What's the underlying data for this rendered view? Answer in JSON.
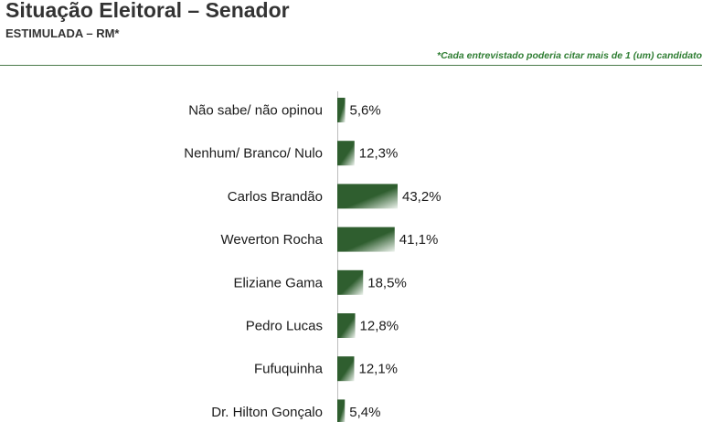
{
  "header": {
    "title": "Situação Eleitoral – Senador",
    "subtitle": "ESTIMULADA – RM*",
    "note": "*Cada entrevistado poderia citar mais de 1 (um) candidato"
  },
  "colors": {
    "bar_dark": "#2f5e2f",
    "bar_light": "#eef4ee",
    "accent": "#2e7d32"
  },
  "chart_data": {
    "type": "bar",
    "orientation": "horizontal",
    "categories": [
      "Não sabe/ não opinou",
      "Nenhum/ Branco/ Nulo",
      "Carlos Brandão",
      "Weverton Rocha",
      "Eliziane Gama",
      "Pedro Lucas",
      "Fufuquinha",
      "Dr. Hilton Gonçalo"
    ],
    "values": [
      5.6,
      12.3,
      43.2,
      41.1,
      18.5,
      12.8,
      12.1,
      5.4
    ],
    "value_labels": [
      "5,6%",
      "12,3%",
      "43,2%",
      "41,1%",
      "18,5%",
      "12,8%",
      "12,1%",
      "5,4%"
    ],
    "unit": "%",
    "grid": false,
    "legend": false
  }
}
